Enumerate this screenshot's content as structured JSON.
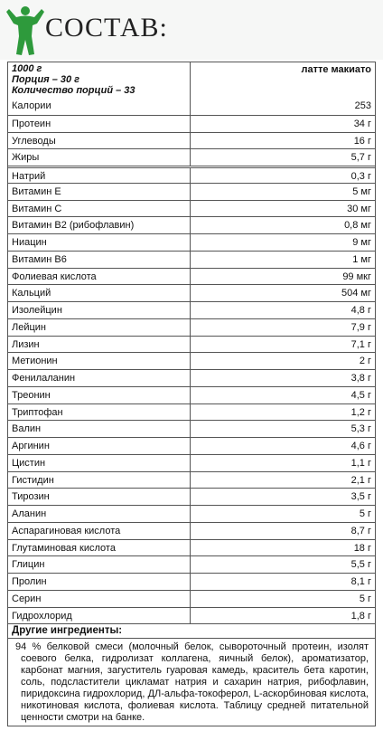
{
  "header": {
    "title": "СОСТАВ:"
  },
  "table": {
    "head": {
      "left": [
        "1000 г",
        "Порция – 30 г",
        "Количество порций – 33"
      ],
      "right": "латте макиато"
    },
    "rows": [
      [
        "Калории",
        "253"
      ],
      [
        "Протеин",
        "34 г"
      ],
      [
        "Углеводы",
        "16 г"
      ],
      [
        "Жиры",
        "5,7 г"
      ],
      [
        "Натрий",
        "0,3 г"
      ],
      [
        "Витамин Е",
        "5 мг"
      ],
      [
        "Витамин С",
        "30 мг"
      ],
      [
        "Витамин В2 (рибофлавин)",
        "0,8 мг"
      ],
      [
        "Ниацин",
        "9 мг"
      ],
      [
        "Витамин В6",
        "1 мг"
      ],
      [
        "Фолиевая кислота",
        "99 мкг"
      ],
      [
        "Кальций",
        "504 мг"
      ],
      [
        "Изолейцин",
        "4,8 г"
      ],
      [
        "Лейцин",
        "7,9 г"
      ],
      [
        "Лизин",
        "7,1 г"
      ],
      [
        "Метионин",
        "2 г"
      ],
      [
        "Фенилаланин",
        "3,8 г"
      ],
      [
        "Треонин",
        "4,5 г"
      ],
      [
        "Триптофан",
        "1,2 г"
      ],
      [
        "Валин",
        "5,3 г"
      ],
      [
        "Аргинин",
        "4,6 г"
      ],
      [
        "Цистин",
        "1,1 г"
      ],
      [
        "Гистидин",
        "2,1 г"
      ],
      [
        "Тирозин",
        "3,5 г"
      ],
      [
        "Аланин",
        "5 г"
      ],
      [
        "Аспарагиновая кислота",
        "8,7 г"
      ],
      [
        "Глутаминовая кислота",
        "18 г"
      ],
      [
        "Глицин",
        "5,5 г"
      ],
      [
        "Пролин",
        "8,1 г"
      ],
      [
        "Серин",
        "5 г"
      ],
      [
        "Гидрохлорид",
        "1,8 г"
      ]
    ]
  },
  "ingredients": {
    "title": "Другие ингредиенты:",
    "text": "94 % белковой смеси (молочный белок, сывороточный протеин, изолят соевого белка, гидролизат коллагена, яичный белок), ароматизатор, карбонат магния, загуститель гуаровая камедь, краситель бета каротин, соль, подсластители цикламат натрия и сахарин натрия, рибофлавин, пиридоксина гидрохлорид, ДЛ-альфа-токоферол, L-аскорбиновая кислота, никотиновая кислота, фолиевая кислота. Таблицу средней питательной ценности смотри на банке."
  }
}
